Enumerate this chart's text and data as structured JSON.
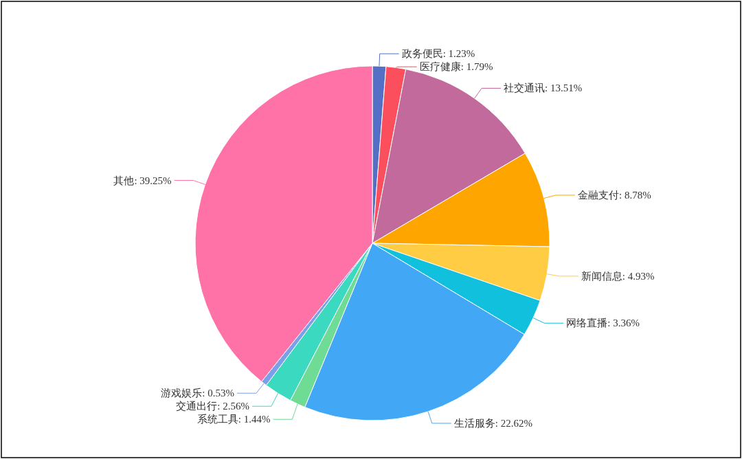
{
  "chart_data": {
    "type": "pie",
    "categories": [
      "政务便民",
      "医疗健康",
      "社交通讯",
      "金融支付",
      "新闻信息",
      "网络直播",
      "生活服务",
      "系统工具",
      "交通出行",
      "游戏娱乐",
      "其他"
    ],
    "values": [
      1.23,
      1.79,
      13.51,
      8.78,
      4.93,
      3.36,
      22.62,
      1.44,
      2.56,
      0.53,
      39.25
    ],
    "value_labels": [
      "1.23%",
      "1.79%",
      "13.51%",
      "8.78%",
      "4.93%",
      "3.36%",
      "22.62%",
      "1.44%",
      "2.56%",
      "0.53%",
      "39.25%"
    ],
    "colors": [
      "#5470c6",
      "#fc4f5e",
      "#c36a9c",
      "#ffa500",
      "#ffcc44",
      "#11c0dc",
      "#42a8f5",
      "#6fdc96",
      "#3ad9c0",
      "#7b9fe8",
      "#ff72a8"
    ]
  }
}
